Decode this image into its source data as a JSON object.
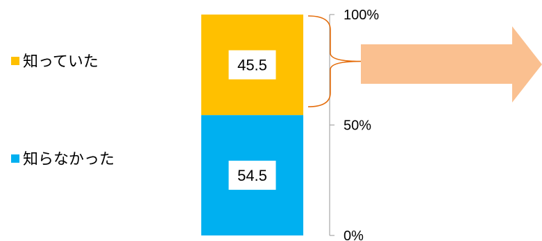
{
  "chart_data": {
    "type": "bar",
    "stacked": true,
    "categories": [
      ""
    ],
    "series": [
      {
        "name": "知らなかった",
        "values": [
          54.5
        ],
        "color": "#00B0F0"
      },
      {
        "name": "知っていた",
        "values": [
          45.5
        ],
        "color": "#FFC000"
      }
    ],
    "ylim": [
      0,
      100
    ],
    "yticks": [
      {
        "value": 0,
        "label": "0%"
      },
      {
        "value": 50,
        "label": "50%"
      },
      {
        "value": 100,
        "label": "100%"
      }
    ],
    "legend": {
      "placement": "left",
      "entries": [
        {
          "label": "知っていた",
          "color": "#FFC000"
        },
        {
          "label": "知らなかった",
          "color": "#00B0F0"
        }
      ]
    },
    "annotations": {
      "brace_color": "#E46C0A",
      "arrow_color": "#FAC090",
      "axis_color": "#A6A6A6"
    }
  }
}
